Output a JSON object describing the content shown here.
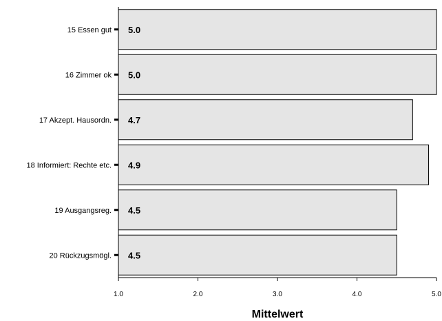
{
  "chart_data": {
    "type": "bar",
    "orientation": "horizontal",
    "categories": [
      "15 Essen gut",
      "16 Zimmer ok",
      "17 Akzept. Hausordn.",
      "18 Informiert: Rechte etc.",
      "19 Ausgangsreg.",
      "20 Rückzugsmögl."
    ],
    "values": [
      5.0,
      5.0,
      4.7,
      4.9,
      4.5,
      4.5
    ],
    "value_labels": [
      "5.0",
      "5.0",
      "4.7",
      "4.9",
      "4.5",
      "4.5"
    ],
    "xlabel": "Mittelwert",
    "xlim": [
      1.0,
      5.0
    ],
    "xticks": [
      1.0,
      2.0,
      3.0,
      4.0,
      5.0
    ],
    "xtick_labels": [
      "1.0",
      "2.0",
      "3.0",
      "4.0",
      "5.0"
    ],
    "grid": false,
    "bar_color": "#e5e5e5",
    "edge_color": "#000000"
  }
}
